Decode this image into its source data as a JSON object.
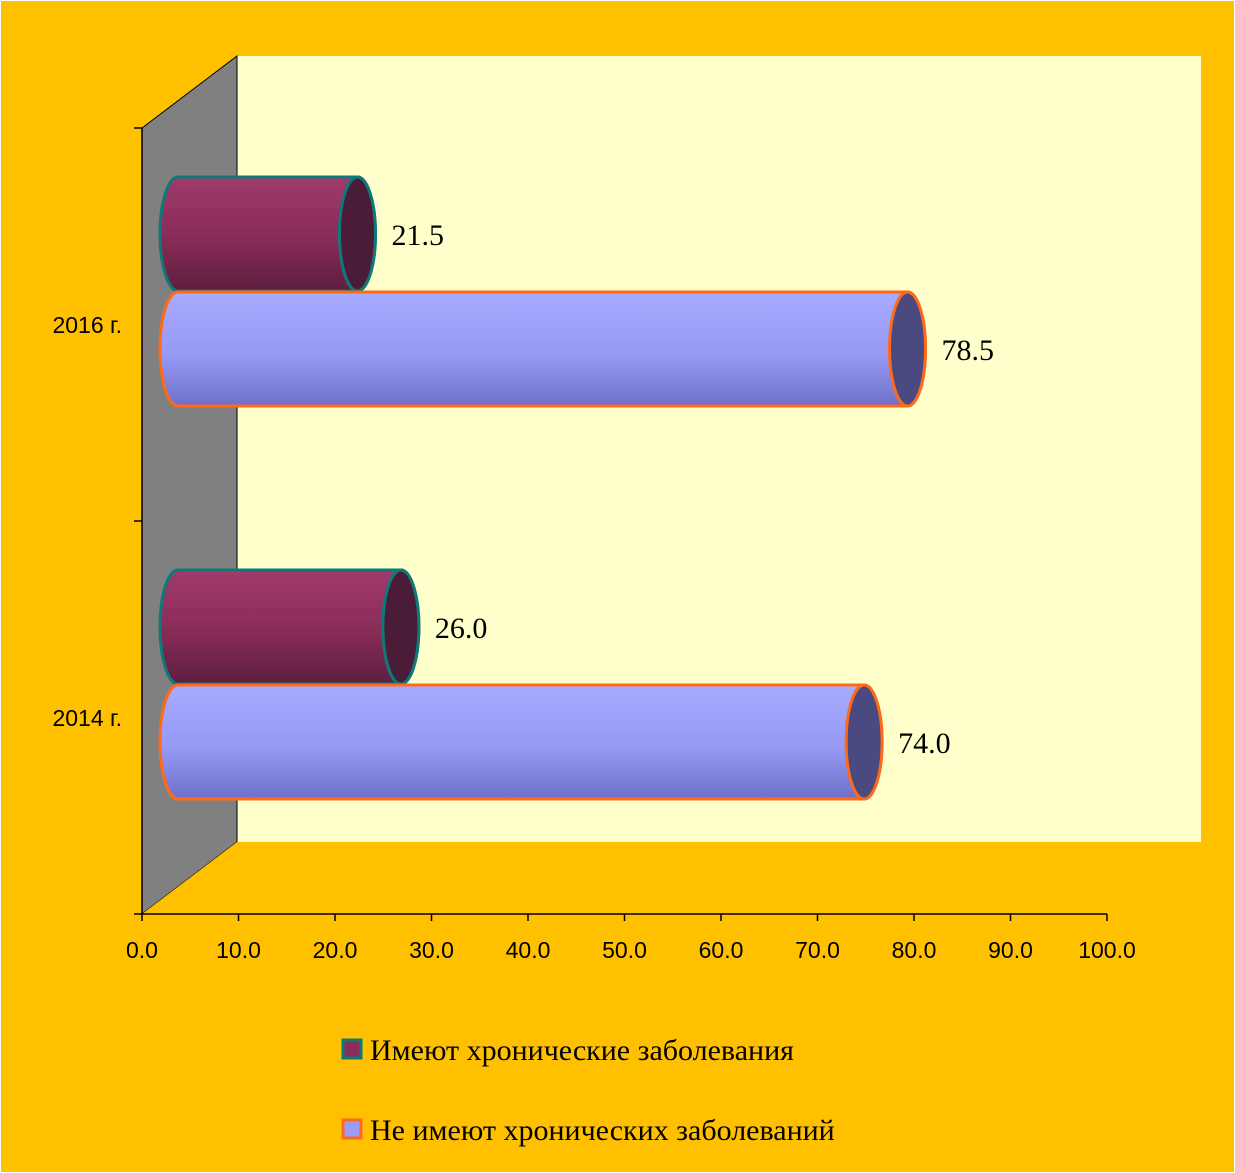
{
  "chart_data": {
    "type": "bar",
    "orientation": "horizontal",
    "style": "3d-cylinder",
    "categories": [
      "2014 г.",
      "2016 г."
    ],
    "series": [
      {
        "name": "Имеют хронические заболевания",
        "values": [
          26.0,
          21.5
        ],
        "color": "#8B2D5A",
        "border": "#0E7A78"
      },
      {
        "name": "Не имеют хронических заболеваний",
        "values": [
          74.0,
          78.5
        ],
        "color": "#9A9CF6",
        "border": "#FF6A1A"
      }
    ],
    "data_labels": [
      {
        "series": 0,
        "category": 0,
        "text": "26.0"
      },
      {
        "series": 0,
        "category": 1,
        "text": "21.5"
      },
      {
        "series": 1,
        "category": 0,
        "text": "74.0"
      },
      {
        "series": 1,
        "category": 1,
        "text": "78.5"
      }
    ],
    "x_ticks": [
      "0.0",
      "10.0",
      "20.0",
      "30.0",
      "40.0",
      "50.0",
      "60.0",
      "70.0",
      "80.0",
      "90.0",
      "100.0"
    ],
    "xlim": [
      0,
      100
    ],
    "grid": false,
    "legend_position": "bottom",
    "colors": {
      "background": "#FFC000",
      "plot_wall": "#FFFFCC",
      "side_wall": "#808080",
      "floor": "#FFC000"
    }
  }
}
